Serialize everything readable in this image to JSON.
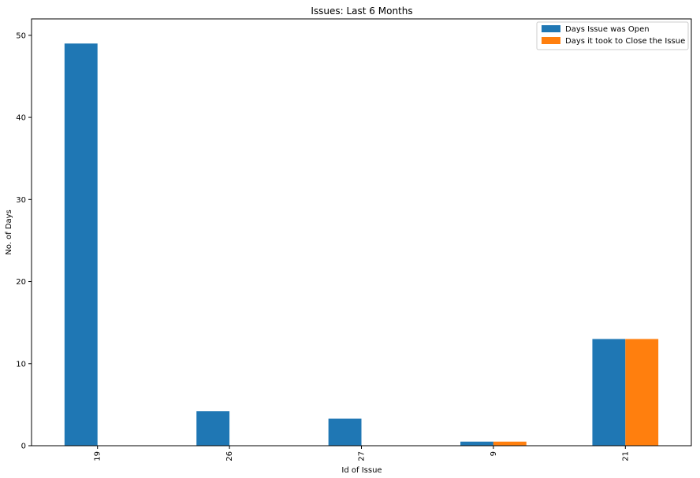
{
  "chart_data": {
    "type": "bar",
    "title": "Issues: Last 6 Months",
    "xlabel": "Id of Issue",
    "ylabel": "No. of Days",
    "categories": [
      "19",
      "26",
      "27",
      "9",
      "21"
    ],
    "series": [
      {
        "name": "Days Issue was Open",
        "values": [
          49,
          4.2,
          3.3,
          0.5,
          13
        ],
        "color": "#1f77b4"
      },
      {
        "name": "Days it took to Close the Issue",
        "values": [
          0,
          0,
          0,
          0.5,
          13
        ],
        "color": "#ff7f0e"
      }
    ],
    "ylim": [
      0,
      52
    ],
    "yticks": [
      0,
      10,
      20,
      30,
      40,
      50
    ],
    "legend_position": "top-right",
    "grid": false
  }
}
